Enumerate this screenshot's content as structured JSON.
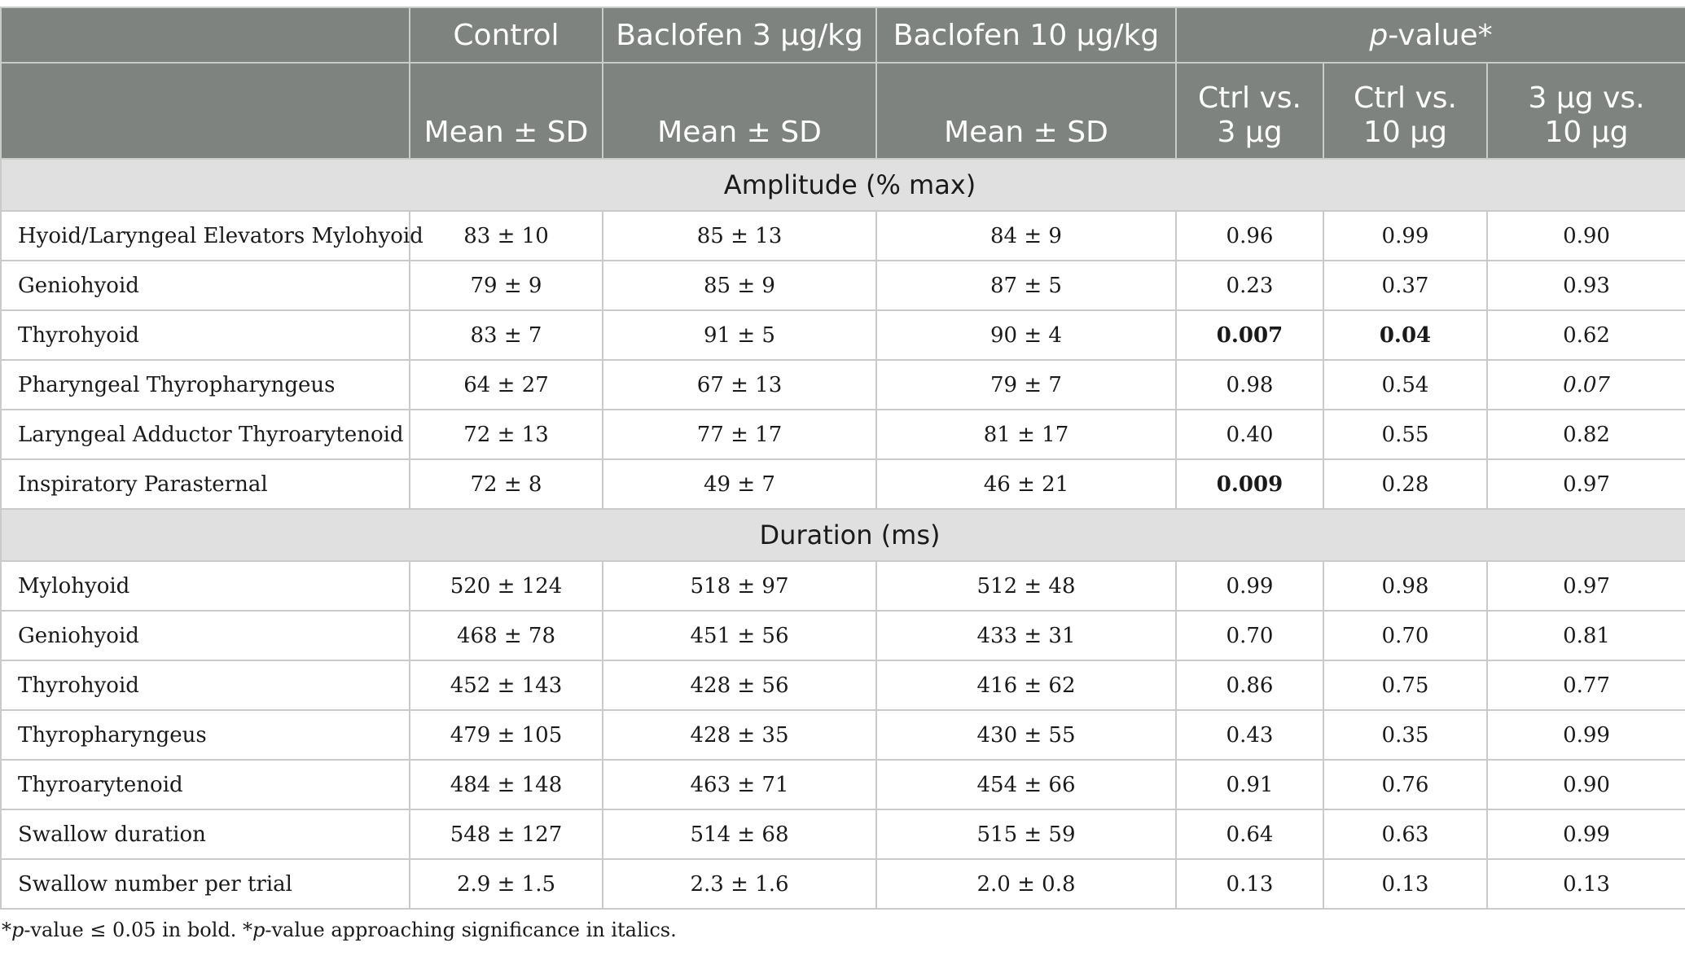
{
  "header": {
    "row1": {
      "blank": "",
      "control": "Control",
      "baclofen3": "Baclofen 3 μg/kg",
      "baclofen10": "Baclofen 10 μg/kg",
      "pvalue_italic": "p",
      "pvalue_rest": "-value*"
    },
    "row2": {
      "blank": "",
      "mean_sd_1": "Mean ± SD",
      "mean_sd_2": "Mean ± SD",
      "mean_sd_3": "Mean ± SD",
      "ctrl_vs_3_line1": "Ctrl vs.",
      "ctrl_vs_3_line2": "3 μg",
      "ctrl_vs_10_line1": "Ctrl vs.",
      "ctrl_vs_10_line2": "10 μg",
      "three_vs_10_line1": "3 μg vs.",
      "three_vs_10_line2": "10 μg"
    }
  },
  "sections": [
    {
      "title": "Amplitude (% max)",
      "rows": [
        {
          "label": "Hyoid/Laryngeal Elevators Mylohyoid",
          "control": "83 ± 10",
          "b3": "85 ± 13",
          "b10": "84 ± 9",
          "p1": "0.96",
          "p2": "0.99",
          "p3": "0.90"
        },
        {
          "label": "Geniohyoid",
          "control": "79 ± 9",
          "b3": "85 ± 9",
          "b10": "87 ± 5",
          "p1": "0.23",
          "p2": "0.37",
          "p3": "0.93"
        },
        {
          "label": "Thyrohyoid",
          "control": "83 ± 7",
          "b3": "91 ± 5",
          "b10": "90 ± 4",
          "p1": "0.007",
          "p2": "0.04",
          "p3": "0.62"
        },
        {
          "label": "Pharyngeal Thyropharyngeus",
          "control": "64 ± 27",
          "b3": "67 ± 13",
          "b10": "79 ± 7",
          "p1": "0.98",
          "p2": "0.54",
          "p3": "0.07"
        },
        {
          "label": "Laryngeal Adductor Thyroarytenoid",
          "control": "72 ± 13",
          "b3": "77 ± 17",
          "b10": "81 ± 17",
          "p1": "0.40",
          "p2": "0.55",
          "p3": "0.82"
        },
        {
          "label": "Inspiratory Parasternal",
          "control": "72 ± 8",
          "b3": "49 ± 7",
          "b10": "46 ± 21",
          "p1": "0.009",
          "p2": "0.28",
          "p3": "0.97"
        }
      ]
    },
    {
      "title": "Duration (ms)",
      "rows": [
        {
          "label": "Mylohyoid",
          "control": "520 ± 124",
          "b3": "518 ± 97",
          "b10": "512 ± 48",
          "p1": "0.99",
          "p2": "0.98",
          "p3": "0.97"
        },
        {
          "label": "Geniohyoid",
          "control": "468 ± 78",
          "b3": "451 ± 56",
          "b10": "433 ± 31",
          "p1": "0.70",
          "p2": "0.70",
          "p3": "0.81"
        },
        {
          "label": "Thyrohyoid",
          "control": "452 ± 143",
          "b3": "428 ± 56",
          "b10": "416 ± 62",
          "p1": "0.86",
          "p2": "0.75",
          "p3": "0.77"
        },
        {
          "label": "Thyropharyngeus",
          "control": "479 ± 105",
          "b3": "428 ± 35",
          "b10": "430 ± 55",
          "p1": "0.43",
          "p2": "0.35",
          "p3": "0.99"
        },
        {
          "label": "Thyroarytenoid",
          "control": "484 ± 148",
          "b3": "463 ± 71",
          "b10": "454 ± 66",
          "p1": "0.91",
          "p2": "0.76",
          "p3": "0.90"
        },
        {
          "label": "Swallow duration",
          "control": "548 ± 127",
          "b3": "514 ± 68",
          "b10": "515 ± 59",
          "p1": "0.64",
          "p2": "0.63",
          "p3": "0.99"
        },
        {
          "label": "Swallow number per trial",
          "control": "2.9 ± 1.5",
          "b3": "2.3 ± 1.6",
          "b10": "2.0 ± 0.8",
          "p1": "0.13",
          "p2": "0.13",
          "p3": "0.13"
        }
      ]
    }
  ],
  "footnote": {
    "part1_star": "*",
    "part1_italic": "p",
    "part1_rest": "-value ≤ 0.05 in bold. *",
    "part2_italic": "p",
    "part2_rest": "-value approaching significance in italics."
  }
}
